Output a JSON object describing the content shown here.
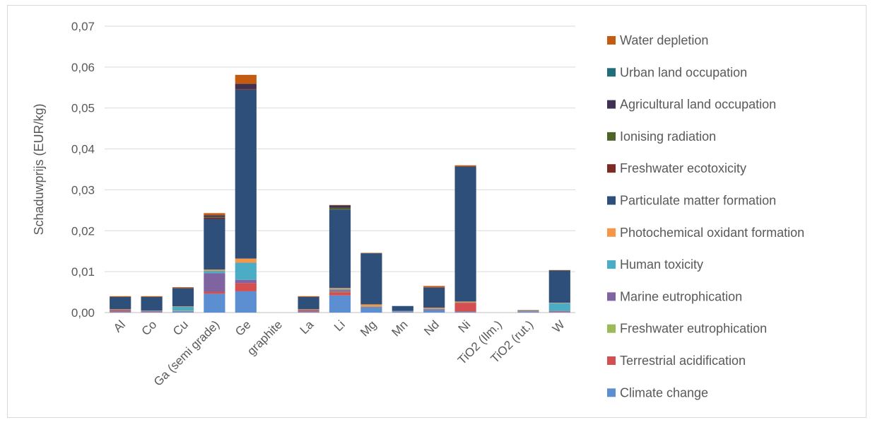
{
  "chart_data": {
    "type": "bar",
    "stacked": true,
    "ylabel": "Schaduwprijs (EUR/kg)",
    "xlabel": "",
    "ylim": [
      0,
      0.07
    ],
    "yticks": [
      "0,00",
      "0,01",
      "0,02",
      "0,03",
      "0,04",
      "0,05",
      "0,06",
      "0,07"
    ],
    "grid": true,
    "legend_position": "right",
    "categories": [
      "Al",
      "Co",
      "Cu",
      "Ga (semi grade)",
      "Ge",
      "graphite",
      "La",
      "Li",
      "Mg",
      "Mn",
      "Nd",
      "Ni",
      "TiO2 (Ilm.)",
      "TiO2 (rut.)",
      "W"
    ],
    "series": [
      {
        "name": "Climate change",
        "color": "#5b8fd1",
        "values": [
          0.0002,
          0.0002,
          0.0003,
          0.0046,
          0.0052,
          0,
          0.0002,
          0.0042,
          0.0012,
          0.0002,
          0.0006,
          0.0002,
          0,
          0.0002,
          0.0002
        ]
      },
      {
        "name": "Terrestrial acidification",
        "color": "#d45050",
        "values": [
          0.0004,
          0.0002,
          0.0001,
          0.0005,
          0.002,
          0,
          0.0004,
          0.0008,
          0.0001,
          0.0001,
          0.0002,
          0.0022,
          0,
          0.0001,
          0.0002
        ]
      },
      {
        "name": "Freshwater eutrophication",
        "color": "#9bbb59",
        "values": [
          0,
          0,
          0.0001,
          0,
          0,
          0,
          0,
          0.0001,
          0,
          0,
          0,
          0,
          0,
          0,
          0
        ]
      },
      {
        "name": "Marine eutrophication",
        "color": "#8064a2",
        "values": [
          0,
          0,
          0,
          0.0045,
          0.0008,
          0,
          0,
          0.0004,
          0,
          0,
          0,
          0,
          0,
          0,
          0
        ]
      },
      {
        "name": "Human toxicity",
        "color": "#4bacc6",
        "values": [
          0.0001,
          0.0001,
          0.0009,
          0.0006,
          0.0042,
          0,
          0.0001,
          0.0002,
          0.0002,
          0.0001,
          0.0002,
          0.0001,
          0,
          0.0001,
          0.0019
        ]
      },
      {
        "name": "Photochemical oxidant formation",
        "color": "#f79646",
        "values": [
          0.0001,
          0,
          0.0001,
          0.0003,
          0.001,
          0,
          0.0001,
          0.0003,
          0.0005,
          0,
          0.0002,
          0.0002,
          0,
          0,
          0.0001
        ]
      },
      {
        "name": "Particulate matter formation",
        "color": "#2e4f7a",
        "values": [
          0.003,
          0.0033,
          0.0045,
          0.0124,
          0.0413,
          0,
          0.003,
          0.0192,
          0.0125,
          0.0012,
          0.0049,
          0.033,
          0,
          0.0001,
          0.0079
        ]
      },
      {
        "name": "Freshwater ecotoxicity",
        "color": "#7b2a24",
        "values": [
          0,
          0,
          0,
          0.0003,
          0.0002,
          0,
          0,
          0,
          0,
          0,
          0.0001,
          0,
          0,
          0,
          0
        ]
      },
      {
        "name": "Ionising radiation",
        "color": "#4f6228",
        "values": [
          0,
          0,
          0,
          0.0002,
          0,
          0,
          0,
          0.0004,
          0,
          0,
          0,
          0,
          0,
          0,
          0
        ]
      },
      {
        "name": "Agricultural land occupation",
        "color": "#3f3151",
        "values": [
          0,
          0,
          0,
          0.0004,
          0.0012,
          0,
          0,
          0.0006,
          0,
          0,
          0,
          0,
          0,
          0,
          0
        ]
      },
      {
        "name": "Urban land occupation",
        "color": "#1f6e7a",
        "values": [
          0,
          0,
          0,
          0,
          0,
          0,
          0,
          0,
          0,
          0,
          0,
          0,
          0,
          0,
          0
        ]
      },
      {
        "name": "Water depletion",
        "color": "#c55a11",
        "values": [
          0.0002,
          0.0002,
          0.0002,
          0.0005,
          0.0022,
          0,
          0.0002,
          0.0001,
          0.0001,
          0,
          0.0003,
          0.0003,
          0,
          0.0001,
          0.0001
        ]
      }
    ]
  }
}
